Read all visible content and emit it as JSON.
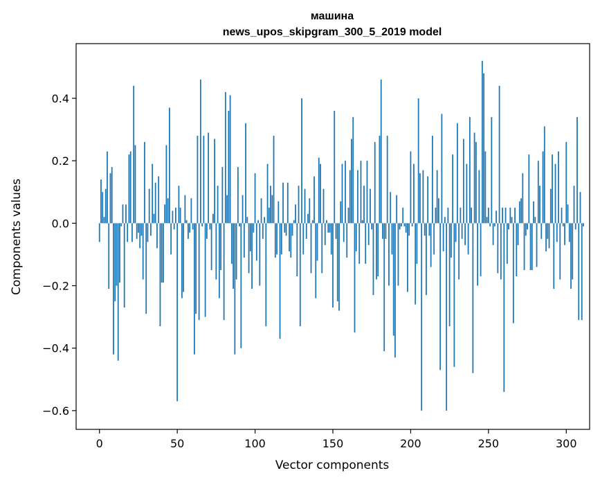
{
  "chart_data": {
    "type": "bar",
    "title_lines": [
      "машина",
      "news_upos_skipgram_300_5_2019 model"
    ],
    "xlabel": "Vector components",
    "ylabel": "Components values",
    "xlim": [
      -15,
      315
    ],
    "ylim": [
      -0.66,
      0.575
    ],
    "x_ticks": [
      0,
      50,
      100,
      150,
      200,
      250,
      300
    ],
    "y_ticks": [
      -0.6,
      -0.4,
      -0.2,
      0.0,
      0.2,
      0.4
    ],
    "y_tick_labels": [
      "−0.6",
      "−0.4",
      "−0.2",
      "0.0",
      "0.2",
      "0.4"
    ],
    "x_tick_labels": [
      "0",
      "50",
      "100",
      "150",
      "200",
      "250",
      "300"
    ],
    "bar_color": "#1f77b4",
    "grid": false,
    "x_start": 0,
    "values": [
      -0.06,
      0.14,
      0.1,
      0.02,
      0.11,
      0.23,
      -0.21,
      0.16,
      0.18,
      -0.42,
      -0.25,
      -0.2,
      -0.44,
      -0.19,
      -0.01,
      0.06,
      -0.27,
      0.06,
      -0.06,
      0.22,
      0.23,
      -0.06,
      0.44,
      0.25,
      -0.05,
      -0.03,
      -0.08,
      -0.04,
      -0.18,
      0.26,
      -0.29,
      -0.06,
      0.11,
      -0.04,
      0.19,
      0.03,
      0.13,
      -0.08,
      0.15,
      -0.33,
      -0.19,
      -0.19,
      0.06,
      0.25,
      0.08,
      0.37,
      -0.1,
      0.04,
      -0.02,
      0.05,
      -0.57,
      0.12,
      0.05,
      -0.24,
      -0.22,
      0.09,
      0.01,
      -0.05,
      -0.03,
      0.08,
      -0.02,
      -0.42,
      -0.29,
      0.28,
      -0.31,
      0.46,
      -0.01,
      0.28,
      -0.3,
      -0.05,
      0.29,
      -0.02,
      -0.15,
      0.03,
      0.27,
      -0.18,
      0.12,
      -0.24,
      -0.15,
      0.18,
      -0.31,
      0.42,
      0.09,
      0.36,
      0.41,
      -0.13,
      -0.21,
      -0.42,
      -0.18,
      0.18,
      -0.01,
      -0.4,
      0.09,
      -0.11,
      0.32,
      0.02,
      -0.16,
      -0.09,
      -0.21,
      -0.03,
      0.16,
      -0.12,
      0.01,
      -0.2,
      0.08,
      -0.05,
      0.02,
      -0.33,
      0.19,
      0.05,
      0.12,
      0.09,
      0.28,
      -0.11,
      -0.1,
      0.07,
      -0.37,
      -0.1,
      0.13,
      -0.03,
      -0.04,
      0.13,
      -0.09,
      -0.11,
      -0.04,
      0.01,
      0.06,
      -0.17,
      0.12,
      -0.33,
      0.4,
      -0.1,
      0.11,
      -0.05,
      0.03,
      0.08,
      -0.16,
      0.01,
      0.15,
      -0.24,
      -0.12,
      0.21,
      0.19,
      -0.16,
      0.11,
      -0.07,
      0.01,
      -0.03,
      -0.03,
      -0.1,
      -0.27,
      0.36,
      -0.05,
      -0.25,
      -0.28,
      0.07,
      0.19,
      -0.06,
      0.2,
      -0.11,
      0.05,
      0.17,
      0.27,
      0.34,
      -0.35,
      -0.09,
      0.17,
      -0.13,
      0.2,
      0.01,
      0.12,
      -0.13,
      0.2,
      -0.07,
      0.11,
      -0.02,
      -0.23,
      0.26,
      -0.18,
      -0.17,
      0.28,
      0.46,
      -0.05,
      -0.41,
      -0.05,
      0.28,
      -0.2,
      0.1,
      -0.1,
      -0.36,
      -0.43,
      0.09,
      -0.2,
      -0.02,
      -0.01,
      0.05,
      -0.01,
      -0.03,
      -0.22,
      -0.04,
      0.23,
      -0.01,
      0.19,
      -0.26,
      -0.13,
      0.4,
      0.16,
      -0.6,
      0.17,
      -0.04,
      -0.23,
      0.15,
      -0.04,
      -0.14,
      0.28,
      -0.1,
      0.05,
      0.17,
      0.08,
      -0.47,
      0.35,
      -0.09,
      0.02,
      -0.6,
      0.05,
      -0.33,
      -0.11,
      0.22,
      -0.46,
      -0.06,
      0.32,
      -0.18,
      0.05,
      -0.05,
      0.27,
      -0.07,
      0.19,
      -0.1,
      0.34,
      0.05,
      -0.48,
      0.29,
      0.26,
      -0.2,
      0.17,
      -0.17,
      0.52,
      0.48,
      0.23,
      0.02,
      0.05,
      -0.01,
      0.34,
      -0.07,
      -0.01,
      0.04,
      -0.16,
      0.44,
      -0.18,
      0.05,
      -0.54,
      0.05,
      -0.13,
      -0.02,
      0.05,
      0.02,
      -0.32,
      0.05,
      -0.17,
      -0.07,
      0.07,
      0.08,
      0.16,
      -0.15,
      -0.04,
      -0.02,
      0.22,
      -0.15,
      -0.15,
      0.07,
      0.02,
      -0.14,
      0.2,
      0.12,
      -0.05,
      0.23,
      0.31,
      -0.09,
      -0.05,
      -0.08,
      0.11,
      0.22,
      -0.21,
      0.19,
      -0.06,
      0.23,
      -0.18,
      0.05,
      -0.01,
      -0.07,
      0.26,
      0.06,
      -0.06,
      -0.21,
      -0.18,
      0.12,
      -0.02,
      0.34,
      -0.31,
      0.1,
      -0.31,
      -0.01
    ]
  }
}
